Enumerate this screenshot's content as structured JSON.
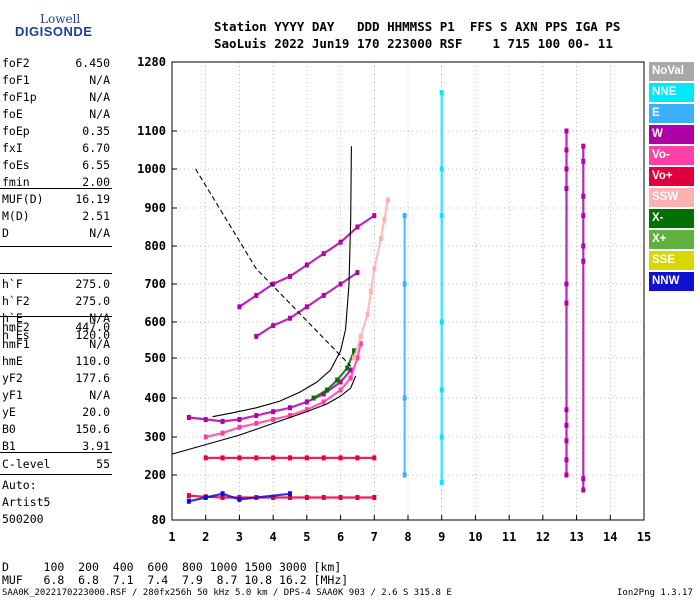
{
  "logo": {
    "top": "Lowell",
    "bottom": "DIGISONDE"
  },
  "header": {
    "line1": "Station YYYY DAY   DDD HHMMSS P1  FFS S AXN PPS IGA PS",
    "line2": "SaoLuis 2022 Jun19 170 223000 RSF    1 715 100 00- 11"
  },
  "params_a": [
    {
      "name": "foF2",
      "value": "6.450"
    },
    {
      "name": "foF1",
      "value": "N/A"
    },
    {
      "name": "foF1p",
      "value": "N/A"
    },
    {
      "name": "foE",
      "value": "N/A"
    },
    {
      "name": "foEp",
      "value": "0.35"
    },
    {
      "name": "fxI",
      "value": "6.70"
    },
    {
      "name": "foEs",
      "value": "6.55"
    },
    {
      "name": "fmin",
      "value": "2.00"
    }
  ],
  "params_b": [
    {
      "name": "MUF(D)",
      "value": "16.19"
    },
    {
      "name": "M(D)",
      "value": "2.51"
    },
    {
      "name": "D",
      "value": "N/A"
    }
  ],
  "params_c": [
    {
      "name": "h`F",
      "value": "275.0"
    },
    {
      "name": "h`F2",
      "value": "275.0"
    },
    {
      "name": "h`E",
      "value": "N/A"
    },
    {
      "name": "h`Es",
      "value": "120.0"
    }
  ],
  "params_d": [
    {
      "name": "hmF2",
      "value": "447.0"
    },
    {
      "name": "hmF1",
      "value": "N/A"
    },
    {
      "name": "hmE",
      "value": "110.0"
    },
    {
      "name": "yF2",
      "value": "177.6"
    },
    {
      "name": "yF1",
      "value": "N/A"
    },
    {
      "name": "yE",
      "value": "20.0"
    },
    {
      "name": "B0",
      "value": "150.6"
    },
    {
      "name": "B1",
      "value": "3.91"
    }
  ],
  "clevel": {
    "name": "C-level",
    "value": "55"
  },
  "auto": [
    "Auto:",
    "Artist5",
    "500200"
  ],
  "legend": [
    {
      "label": "NoVal",
      "color": "#a8a8a8"
    },
    {
      "label": "NNE",
      "color": "#00e8ff"
    },
    {
      "label": "E",
      "color": "#3ab0ff"
    },
    {
      "label": "W",
      "color": "#b000a8"
    },
    {
      "label": "Vo-",
      "color": "#ff40a8"
    },
    {
      "label": "Vo+",
      "color": "#e00040"
    },
    {
      "label": "SSW",
      "color": "#ffb0b0"
    },
    {
      "label": "X-",
      "color": "#007000"
    },
    {
      "label": "X+",
      "color": "#60b040"
    },
    {
      "label": "SSE",
      "color": "#d8d800"
    },
    {
      "label": "NNW",
      "color": "#1010d0"
    }
  ],
  "muf_table": {
    "d_line": "D     100  200  400  600  800 1000 1500 3000 [km]",
    "muf_line": "MUF   6.8  6.8  7.1  7.4  7.9  8.7 10.8 16.2 [MHz]"
  },
  "footer": {
    "left": "SAA0K_2022170223000.RSF / 280fx256h 50 kHz 5.0 km / DPS-4 SAA0K 903 / 2.6 S 315.8 E",
    "right": "Ion2Png 1.3.17"
  },
  "chart_data": {
    "type": "scatter",
    "x_ticks": [
      "1",
      "2",
      "3",
      "4",
      "5",
      "6",
      "7",
      "8",
      "9",
      "10",
      "11",
      "12",
      "13",
      "14",
      "15"
    ],
    "y_ticks": [
      "80",
      "200",
      "300",
      "400",
      "500",
      "600",
      "700",
      "800",
      "900",
      "1000",
      "1100",
      "1280"
    ],
    "xlim": [
      1,
      15
    ],
    "ylim": [
      80,
      1280
    ],
    "grid": true,
    "profile_curve": [
      [
        6.32,
        1060
      ],
      [
        6.3,
        870
      ],
      [
        6.25,
        700
      ],
      [
        6.15,
        580
      ],
      [
        6.0,
        520
      ],
      [
        5.7,
        470
      ],
      [
        5.3,
        440
      ],
      [
        4.8,
        415
      ],
      [
        4.2,
        392
      ],
      [
        3.5,
        375
      ],
      [
        2.8,
        362
      ],
      [
        2.2,
        352
      ]
    ],
    "model_curve": [
      [
        1.0,
        255
      ],
      [
        2.0,
        280
      ],
      [
        3.0,
        305
      ],
      [
        4.0,
        335
      ],
      [
        5.0,
        365
      ],
      [
        5.6,
        385
      ],
      [
        6.0,
        405
      ],
      [
        6.3,
        425
      ],
      [
        6.45,
        455
      ]
    ],
    "dashed_line": [
      [
        1.7,
        1000
      ],
      [
        3.5,
        740
      ],
      [
        6.3,
        480
      ]
    ],
    "traces": [
      {
        "name": "W",
        "color": "#b000a8",
        "points": [
          [
            1.5,
            350
          ],
          [
            2.0,
            345
          ],
          [
            2.5,
            340
          ],
          [
            3.0,
            345
          ],
          [
            3.5,
            355
          ],
          [
            4.0,
            365
          ],
          [
            4.5,
            375
          ],
          [
            5.0,
            390
          ],
          [
            5.5,
            410
          ],
          [
            6.0,
            440
          ],
          [
            6.3,
            470
          ]
        ]
      },
      {
        "name": "Vo-",
        "color": "#ff40a8",
        "points": [
          [
            2.0,
            300
          ],
          [
            2.5,
            310
          ],
          [
            3.0,
            325
          ],
          [
            3.5,
            335
          ],
          [
            4.0,
            345
          ],
          [
            4.5,
            355
          ],
          [
            5.0,
            370
          ],
          [
            5.5,
            390
          ],
          [
            6.0,
            420
          ],
          [
            6.3,
            450
          ],
          [
            6.5,
            500
          ],
          [
            6.6,
            540
          ]
        ]
      },
      {
        "name": "X-",
        "color": "#007000",
        "points": [
          [
            5.2,
            400
          ],
          [
            5.6,
            420
          ],
          [
            5.9,
            445
          ],
          [
            6.2,
            475
          ],
          [
            6.4,
            520
          ]
        ]
      },
      {
        "name": "SSW",
        "color": "#ffb0b0",
        "points": [
          [
            6.4,
            500
          ],
          [
            6.6,
            560
          ],
          [
            6.8,
            620
          ],
          [
            6.9,
            680
          ],
          [
            7.0,
            740
          ],
          [
            7.2,
            820
          ],
          [
            7.3,
            870
          ],
          [
            7.4,
            920
          ]
        ]
      },
      {
        "name": "W",
        "color": "#b000a8",
        "points": [
          [
            3.0,
            640
          ],
          [
            3.5,
            670
          ],
          [
            4.0,
            700
          ],
          [
            4.5,
            720
          ],
          [
            5.0,
            750
          ],
          [
            5.5,
            780
          ],
          [
            6.0,
            810
          ],
          [
            6.5,
            850
          ],
          [
            7.0,
            880
          ]
        ]
      },
      {
        "name": "W",
        "color": "#b000a8",
        "points": [
          [
            3.5,
            560
          ],
          [
            4.0,
            590
          ],
          [
            4.5,
            610
          ],
          [
            5.0,
            640
          ],
          [
            5.5,
            670
          ],
          [
            6.0,
            700
          ],
          [
            6.5,
            730
          ]
        ]
      },
      {
        "name": "Vo+",
        "color": "#e00040",
        "points": [
          [
            1.5,
            145
          ],
          [
            2.0,
            142
          ],
          [
            2.5,
            140
          ],
          [
            3.0,
            140
          ],
          [
            3.5,
            140
          ],
          [
            4.0,
            140
          ],
          [
            4.5,
            140
          ],
          [
            5.0,
            140
          ],
          [
            5.5,
            140
          ],
          [
            6.0,
            140
          ],
          [
            6.5,
            140
          ],
          [
            7.0,
            140
          ]
        ]
      },
      {
        "name": "Vo+",
        "color": "#e00040",
        "points": [
          [
            2.0,
            245
          ],
          [
            2.5,
            245
          ],
          [
            3.0,
            245
          ],
          [
            3.5,
            245
          ],
          [
            4.0,
            245
          ],
          [
            4.5,
            245
          ],
          [
            5.0,
            245
          ],
          [
            5.5,
            245
          ],
          [
            6.0,
            245
          ],
          [
            6.5,
            245
          ],
          [
            7.0,
            245
          ]
        ]
      },
      {
        "name": "W",
        "color": "#b000a8",
        "points": [
          [
            12.7,
            1100
          ],
          [
            12.7,
            1050
          ],
          [
            12.7,
            1000
          ],
          [
            12.7,
            950
          ],
          [
            12.7,
            700
          ],
          [
            12.7,
            650
          ],
          [
            12.7,
            370
          ],
          [
            12.7,
            330
          ],
          [
            12.7,
            290
          ],
          [
            12.7,
            240
          ],
          [
            12.7,
            200
          ]
        ]
      },
      {
        "name": "W",
        "color": "#b000a8",
        "points": [
          [
            13.2,
            1060
          ],
          [
            13.2,
            1020
          ],
          [
            13.2,
            930
          ],
          [
            13.2,
            880
          ],
          [
            13.2,
            800
          ],
          [
            13.2,
            760
          ],
          [
            13.2,
            190
          ],
          [
            13.2,
            160
          ]
        ]
      },
      {
        "name": "NNE",
        "color": "#00e8ff",
        "points": [
          [
            9.0,
            1200
          ],
          [
            9.0,
            1000
          ],
          [
            9.0,
            880
          ],
          [
            9.0,
            600
          ],
          [
            9.0,
            420
          ],
          [
            9.0,
            300
          ],
          [
            9.0,
            180
          ]
        ]
      },
      {
        "name": "E",
        "color": "#3ab0ff",
        "points": [
          [
            7.9,
            880
          ],
          [
            7.9,
            700
          ],
          [
            7.9,
            400
          ],
          [
            7.9,
            200
          ]
        ]
      },
      {
        "name": "NNW",
        "color": "#1010d0",
        "points": [
          [
            1.5,
            130
          ],
          [
            2.0,
            140
          ],
          [
            2.5,
            150
          ],
          [
            3.0,
            135
          ],
          [
            4.5,
            150
          ]
        ]
      }
    ]
  }
}
